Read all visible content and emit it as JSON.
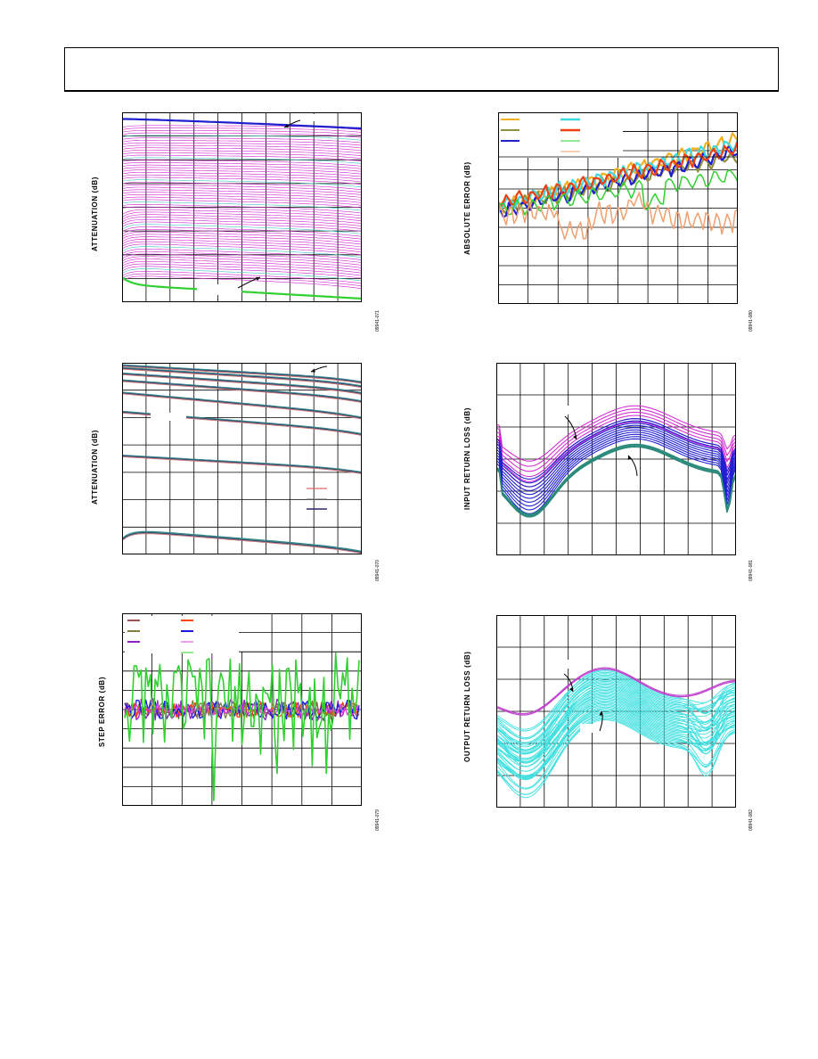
{
  "page": {
    "background": "#ffffff"
  },
  "chart_data": [
    {
      "id": "attn_full",
      "type": "line",
      "title": "",
      "xlabel": "",
      "ylabel": "ATTENUATION (dB)",
      "figure_id": "09941-071",
      "grid": true,
      "xlim": [
        0,
        10
      ],
      "ylim": [
        0,
        8
      ],
      "colors": {
        "top": "#1f1fd0",
        "middle": "#d020d0",
        "bottom": "#30d030",
        "accent": "#40c0c0"
      },
      "series": [
        {
          "role": "top",
          "count": 1,
          "start": 7.72,
          "end": 7.32
        },
        {
          "role": "middle",
          "count": 62
        },
        {
          "role": "bottom",
          "count": 1,
          "start": 1.05,
          "end": 0.15
        }
      ]
    },
    {
      "id": "attn_major",
      "type": "line",
      "title": "",
      "xlabel": "",
      "ylabel": "ATTENUATION (dB)",
      "figure_id": "09941-070",
      "grid": true,
      "xlim": [
        0,
        10
      ],
      "ylim": [
        0,
        7
      ],
      "colors": {
        "a": "#e06868",
        "b": "#8a8a8a",
        "c": "#2a2a6a",
        "d": "#3a8a8a"
      },
      "series": [
        {
          "level": 6.9,
          "end": 6.4
        },
        {
          "level": 6.8,
          "end": 6.25
        },
        {
          "level": 6.6,
          "end": 6.0
        },
        {
          "level": 6.35,
          "end": 5.7
        },
        {
          "level": 5.9,
          "end": 5.1
        },
        {
          "level": 5.2,
          "end": 4.5
        },
        {
          "level": 3.6,
          "end": 3.1
        },
        {
          "level": 0.9,
          "end": 0.2
        }
      ]
    },
    {
      "id": "step_error",
      "type": "line",
      "title": "",
      "xlabel": "",
      "ylabel": "STEP ERROR (dB)",
      "figure_id": "09941-079",
      "grid": true,
      "xlim": [
        0,
        8
      ],
      "ylim": [
        -1,
        1
      ],
      "series": [
        {
          "color": "#a05050",
          "amp": 0.08
        },
        {
          "color": "#808040",
          "amp": 0.1
        },
        {
          "color": "#9020c0",
          "amp": 0.12
        },
        {
          "color": "#ff4010",
          "amp": 0.08
        },
        {
          "color": "#1a1ae0",
          "amp": 0.1
        },
        {
          "color": "#e040e0",
          "amp": 0.06
        },
        {
          "color": "#30d030",
          "amp": 0.45
        }
      ]
    },
    {
      "id": "abs_error",
      "type": "line",
      "title": "",
      "xlabel": "",
      "ylabel": "ABSOLUTE ERROR (dB)",
      "figure_id": "09941-080",
      "grid": true,
      "xlim": [
        0,
        8
      ],
      "ylim": [
        -1,
        1
      ],
      "series": [
        {
          "color": "#f0b020",
          "start": 0.0,
          "end": 0.72
        },
        {
          "color": "#909040",
          "start": 0.0,
          "end": 0.55
        },
        {
          "color": "#2020d0",
          "start": -0.05,
          "end": 0.6
        },
        {
          "color": "#40d8e0",
          "start": 0.02,
          "end": 0.68
        },
        {
          "color": "#f04010",
          "start": 0.05,
          "end": 0.62
        },
        {
          "color": "#30d030",
          "start": -0.02,
          "end": 0.36
        },
        {
          "color": "#f0a070",
          "start": -0.05,
          "end": -0.1
        }
      ]
    },
    {
      "id": "input_rl",
      "type": "line",
      "title": "",
      "xlabel": "",
      "ylabel": "INPUT RETURN LOSS (dB)",
      "figure_id": "09941-081",
      "grid": true,
      "xlim": [
        0,
        10
      ],
      "ylim": [
        -30,
        0
      ],
      "colors": {
        "upper": "#d020d0",
        "mid": "#2020d0",
        "lower": "#2a8a7a"
      }
    },
    {
      "id": "output_rl",
      "type": "line",
      "title": "",
      "xlabel": "",
      "ylabel": "OUTPUT RETURN LOSS (dB)",
      "figure_id": "09941-082",
      "grid": true,
      "xlim": [
        0,
        10
      ],
      "ylim": [
        -30,
        0
      ],
      "colors": {
        "main": "#40e0e0",
        "top": "#c040d0"
      }
    }
  ]
}
